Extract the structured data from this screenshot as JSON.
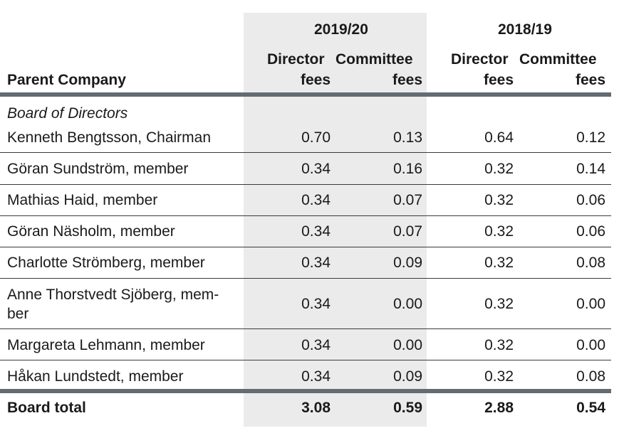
{
  "header": {
    "col_label": "Parent Company",
    "period_current": "2019/20",
    "period_prior": "2018/19",
    "director_fees_line1": "Director",
    "director_fees_line2": "fees",
    "committee_fees_line1": "Committee",
    "committee_fees_line2": "fees"
  },
  "section_label": "Board of Directors",
  "rows": [
    {
      "name": "Kenneth Bengtsson, Chairman",
      "dir_2019": "0.70",
      "com_2019": "0.13",
      "dir_2018": "0.64",
      "com_2018": "0.12"
    },
    {
      "name": "Göran Sundström, member",
      "dir_2019": "0.34",
      "com_2019": "0.16",
      "dir_2018": "0.32",
      "com_2018": "0.14"
    },
    {
      "name": "Mathias Haid, member",
      "dir_2019": "0.34",
      "com_2019": "0.07",
      "dir_2018": "0.32",
      "com_2018": "0.06"
    },
    {
      "name": "Göran Näsholm, member",
      "dir_2019": "0.34",
      "com_2019": "0.07",
      "dir_2018": "0.32",
      "com_2018": "0.06"
    },
    {
      "name": "Charlotte Strömberg, member",
      "dir_2019": "0.34",
      "com_2019": "0.09",
      "dir_2018": "0.32",
      "com_2018": "0.08"
    },
    {
      "name_line1": "Anne Thorstvedt Sjöberg, mem-",
      "name_line2": "ber",
      "dir_2019": "0.34",
      "com_2019": "0.00",
      "dir_2018": "0.32",
      "com_2018": "0.00"
    },
    {
      "name": "Margareta Lehmann, member",
      "dir_2019": "0.34",
      "com_2019": "0.00",
      "dir_2018": "0.32",
      "com_2018": "0.00"
    },
    {
      "name": "Håkan Lundstedt, member",
      "dir_2019": "0.34",
      "com_2019": "0.09",
      "dir_2018": "0.32",
      "com_2018": "0.08"
    }
  ],
  "total": {
    "label": "Board total",
    "dir_2019": "3.08",
    "com_2019": "0.59",
    "dir_2018": "2.88",
    "com_2018": "0.54"
  },
  "colors": {
    "shade": "#ebebeb",
    "thick_rule": "#636b73",
    "thin_rule": "#3a3a3a"
  }
}
